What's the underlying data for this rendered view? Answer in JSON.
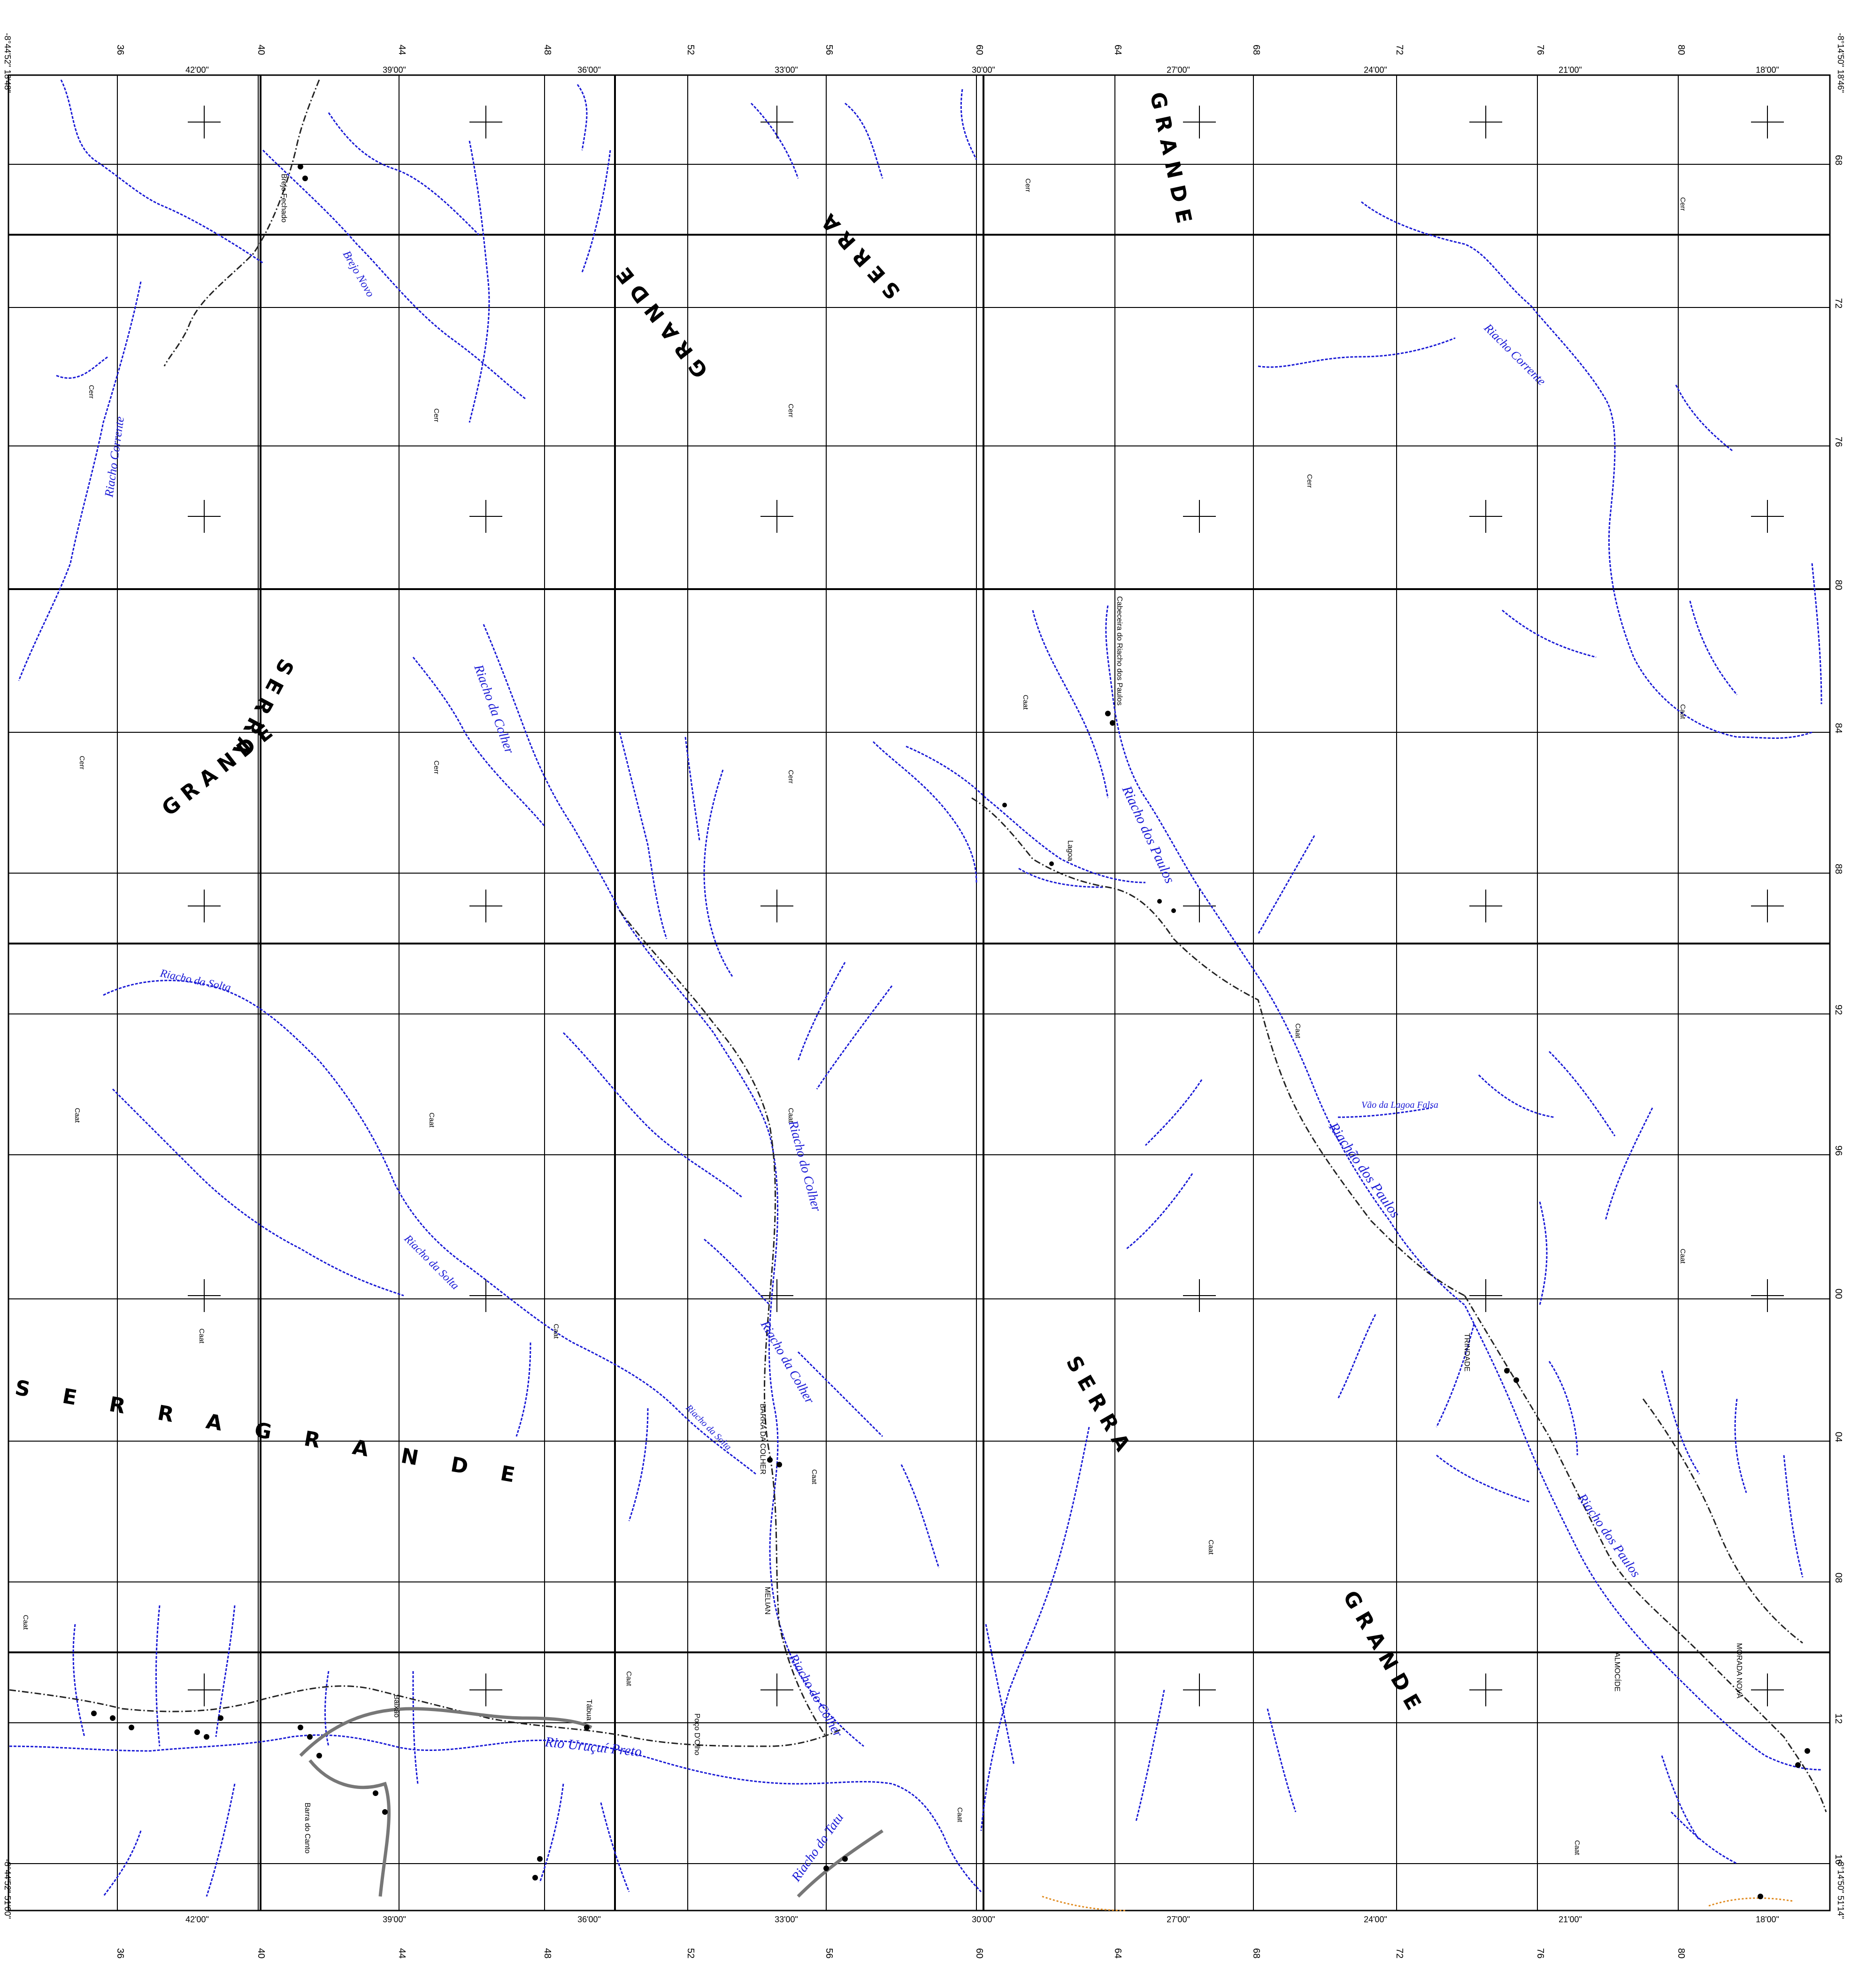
{
  "colors": {
    "grid": "#000000",
    "river": "#1a1ad6",
    "road": "#222222",
    "highway": "#777777",
    "boundary": "#e08a1e"
  },
  "grid_labels": {
    "top_km": [
      "36",
      "40",
      "44",
      "48",
      "52",
      "56",
      "60",
      "64",
      "68",
      "72",
      "76",
      "80"
    ],
    "top_deg": [
      "42'00\"",
      "39'00\"",
      "36'00\"",
      "33'00\"",
      "30'00\"",
      "27'00\"",
      "24'00\"",
      "21'00\"",
      "18'00\""
    ],
    "right_km": [
      "68",
      "72",
      "76",
      "80",
      "84",
      "88",
      "92",
      "96",
      "00",
      "04",
      "08",
      "12",
      "16"
    ],
    "corner_top_left": "-8°44'52\"  18'48\"",
    "corner_top_right": "-8°14'50\"  18'46\"",
    "corner_bottom_left": "-8°44'52\"  51'00\"",
    "corner_bottom_right": "-8°14'50\"  51'14\""
  },
  "serra_labels": [
    "S E R R A   G R A N D E",
    "G R A N D E",
    "S E R R A",
    "G R A N D E",
    "S E R R A",
    "G R A N D E",
    "S E R R A",
    "G R A N D E"
  ],
  "rivers": [
    "Riacho Corrente",
    "Brejo Novo",
    "Riacho Corrente",
    "Riacho da Colher",
    "Riacho da Solta",
    "Riacho da Solta",
    "Riacho dos Paulos",
    "Riachão dos Paulos",
    "Riacho dos Paulos",
    "Rio Uruçuí Preto",
    "Riacho do Colher",
    "Riacho da Colher",
    "Riacho do Colher",
    "Riacho do Tatu",
    "Riacho da Solta",
    "Vão da Lagoa Falsa"
  ],
  "places": [
    "Brejo Fechado",
    "BARRA DA COLHER",
    "MELIAN",
    "TRINDADE",
    "Barra do Canto",
    "Poço D'Olho",
    "Lagoa",
    "Cabeceira do Riacho dos Paulos",
    "ALMOCÍDE",
    "MORADA NOVA",
    "Baixão",
    "Tábua"
  ],
  "vegetation": [
    "Cerr",
    "Caat"
  ]
}
